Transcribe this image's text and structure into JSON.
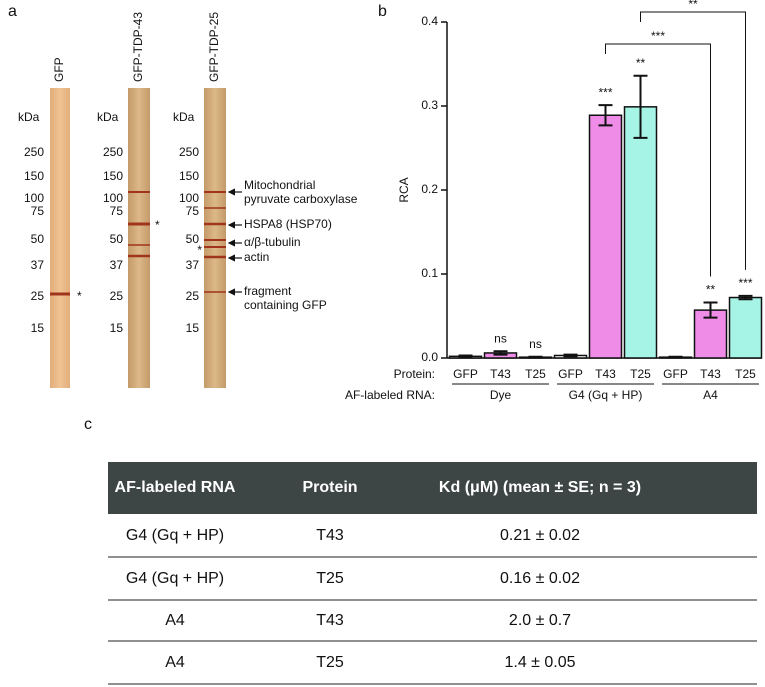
{
  "gel": {
    "panel": "a",
    "kda": "kDa",
    "markers": [
      "250",
      "150",
      "100",
      "75",
      "50",
      "37",
      "25",
      "15"
    ],
    "lanes": [
      "GFP",
      "GFP-TDP-43",
      "GFP-TDP-25"
    ],
    "asterisk": "*",
    "annotations": [
      [
        "Mitochondrial",
        "pyruvate carboxylase"
      ],
      [
        "HSPA8 (HSP70)"
      ],
      [
        "α/β-tubulin"
      ],
      [
        "actin"
      ],
      [
        "fragment",
        "containing GFP"
      ]
    ]
  },
  "chart_data": {
    "type": "bar",
    "panel_label": "b",
    "y_label": "RCA",
    "row_labels": [
      "Protein:",
      "AF-labeled RNA:"
    ],
    "categories": [
      "GFP",
      "T43",
      "T25",
      "GFP",
      "T43",
      "T25",
      "GFP",
      "T43",
      "T25"
    ],
    "groups": [
      "Dye",
      "G4 (Gq + HP)",
      "A4"
    ],
    "values": [
      0.002,
      0.006,
      0.001,
      0.003,
      0.289,
      0.299,
      0.001,
      0.057,
      0.072
    ],
    "errors": [
      0.001,
      0.002,
      0.0005,
      0.001,
      0.012,
      0.037,
      0.0005,
      0.009,
      0.002
    ],
    "colors": [
      "#ffffff",
      "#ee8ce8",
      "#a6f4e6",
      "#ffffff",
      "#ee8ce8",
      "#a6f4e6",
      "#ffffff",
      "#ee8ce8",
      "#a6f4e6"
    ],
    "significance": [
      null,
      "ns",
      "ns",
      null,
      "***",
      "**",
      null,
      "**",
      "***"
    ],
    "comparison_labels": [
      "***",
      "**"
    ],
    "ylim": [
      0,
      0.4
    ],
    "yticks": [
      {
        "value": 0,
        "label": "0.0"
      },
      0.1,
      0.2,
      0.3,
      0.4
    ]
  },
  "table": {
    "panel": "c",
    "header": [
      "AF-labeled RNA",
      "Protein",
      "Kd (μM) (mean ± SE; n = 3)"
    ],
    "rows": [
      [
        "G4 (Gq + HP)",
        "T43",
        "0.21 ± 0.02"
      ],
      [
        "G4 (Gq + HP)",
        "T25",
        "0.16 ± 0.02"
      ],
      [
        "A4",
        "T43",
        "2.0 ± 0.7"
      ],
      [
        "A4",
        "T25",
        "1.4 ± 0.05"
      ]
    ]
  }
}
